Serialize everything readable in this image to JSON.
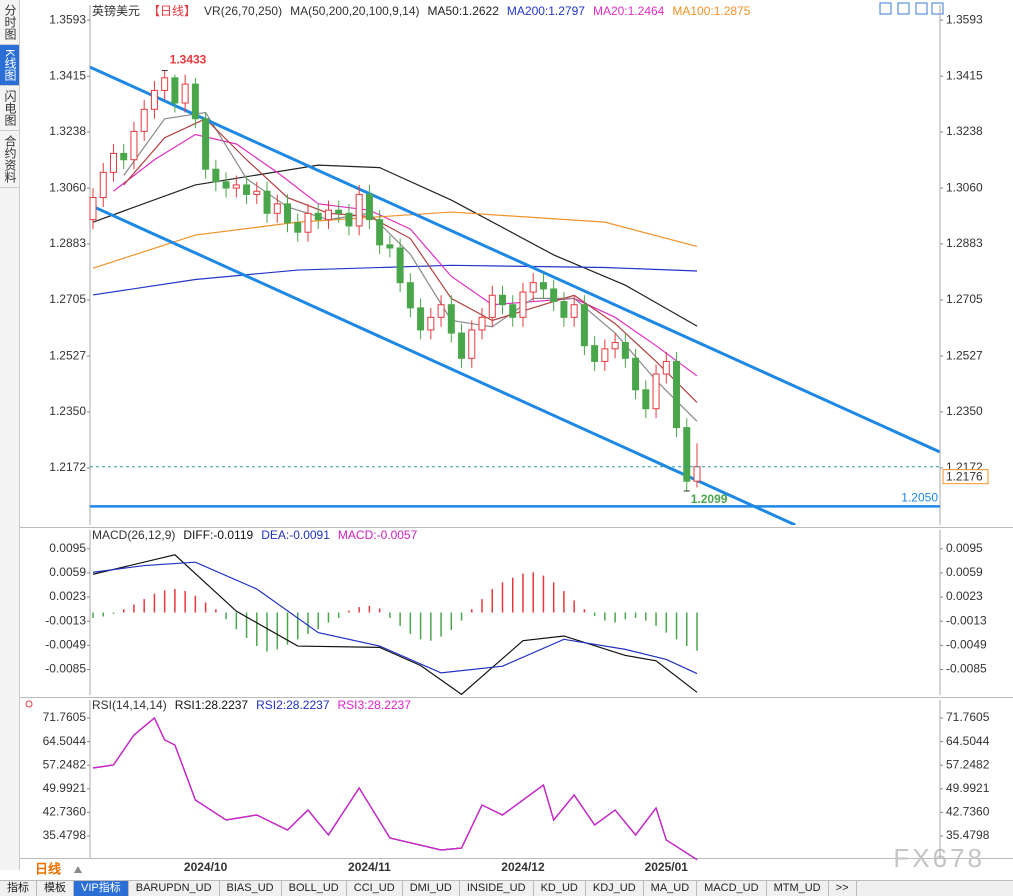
{
  "ui": {
    "side_tabs": [
      "分时图",
      "K线图",
      "闪电图",
      "合约资料"
    ],
    "active_side_tab": 1,
    "period": "日线",
    "bottom_tabs": [
      "指标",
      "模板",
      "VIP指标",
      "BARUPDN_UD",
      "BIAS_UD",
      "BOLL_UD",
      "CCI_UD",
      "DMI_UD",
      "INSIDE_UD",
      "KD_UD",
      "KDJ_UD",
      "MA_UD",
      "MACD_UD",
      "MTM_UD",
      ">>"
    ],
    "active_bottom_tab": 2,
    "watermark": "FX678"
  },
  "chart_data": [
    {
      "type": "candlestick",
      "title": "英镑美元",
      "subtitle": "【日线】",
      "indicators": [
        "VR(26,70,250)",
        "MA(50,200,20,100,9,14)"
      ],
      "categories": [
        null,
        null,
        null,
        null,
        null,
        null,
        null,
        null,
        null,
        null,
        null,
        "2024/10",
        null,
        null,
        null,
        null,
        null,
        null,
        null,
        null,
        null,
        null,
        null,
        null,
        null,
        null,
        null,
        "2024/11",
        null,
        null,
        null,
        null,
        null,
        null,
        null,
        null,
        null,
        null,
        null,
        null,
        null,
        null,
        "2024/12",
        null,
        null,
        null,
        null,
        null,
        null,
        null,
        null,
        null,
        null,
        null,
        null,
        null,
        "2025/01",
        null,
        null,
        null
      ],
      "open": [
        1.296,
        1.303,
        1.311,
        1.317,
        1.315,
        1.324,
        1.331,
        1.337,
        1.341,
        1.333,
        1.339,
        1.328,
        1.312,
        1.308,
        1.306,
        1.307,
        1.304,
        1.305,
        1.298,
        1.301,
        1.295,
        1.292,
        1.298,
        1.296,
        1.299,
        1.298,
        1.294,
        1.304,
        1.296,
        1.288,
        1.287,
        1.276,
        1.268,
        1.261,
        1.265,
        1.269,
        1.26,
        1.252,
        1.261,
        1.265,
        1.272,
        1.269,
        1.265,
        1.273,
        1.276,
        1.274,
        1.27,
        1.265,
        1.269,
        1.256,
        1.251,
        1.255,
        1.257,
        1.252,
        1.242,
        1.236,
        1.247,
        1.251,
        1.23,
        1.213
      ],
      "high": [
        1.306,
        1.314,
        1.32,
        1.32,
        1.327,
        1.334,
        1.34,
        1.3433,
        1.342,
        1.342,
        1.341,
        1.33,
        1.315,
        1.311,
        1.31,
        1.31,
        1.308,
        1.308,
        1.304,
        1.304,
        1.298,
        1.301,
        1.301,
        1.302,
        1.302,
        1.301,
        1.307,
        1.307,
        1.299,
        1.291,
        1.29,
        1.279,
        1.271,
        1.268,
        1.272,
        1.272,
        1.263,
        1.264,
        1.268,
        1.275,
        1.275,
        1.272,
        1.276,
        1.279,
        1.279,
        1.277,
        1.273,
        1.272,
        1.272,
        1.259,
        1.258,
        1.26,
        1.26,
        1.255,
        1.245,
        1.25,
        1.254,
        1.254,
        1.233,
        1.225
      ],
      "low": [
        1.293,
        1.3,
        1.308,
        1.312,
        1.312,
        1.321,
        1.328,
        1.334,
        1.33,
        1.33,
        1.325,
        1.309,
        1.305,
        1.303,
        1.303,
        1.301,
        1.301,
        1.295,
        1.295,
        1.292,
        1.289,
        1.289,
        1.293,
        1.293,
        1.295,
        1.291,
        1.291,
        1.293,
        1.285,
        1.284,
        1.273,
        1.265,
        1.258,
        1.258,
        1.262,
        1.257,
        1.249,
        1.249,
        1.258,
        1.262,
        1.266,
        1.262,
        1.262,
        1.27,
        1.271,
        1.267,
        1.262,
        1.262,
        1.253,
        1.248,
        1.248,
        1.252,
        1.249,
        1.239,
        1.233,
        1.233,
        1.244,
        1.227,
        1.2099,
        1.211
      ],
      "close": [
        1.303,
        1.311,
        1.317,
        1.315,
        1.324,
        1.331,
        1.337,
        1.341,
        1.333,
        1.339,
        1.328,
        1.312,
        1.308,
        1.306,
        1.307,
        1.304,
        1.305,
        1.298,
        1.301,
        1.295,
        1.292,
        1.298,
        1.296,
        1.299,
        1.298,
        1.294,
        1.304,
        1.296,
        1.288,
        1.287,
        1.276,
        1.268,
        1.261,
        1.265,
        1.269,
        1.26,
        1.252,
        1.261,
        1.265,
        1.272,
        1.269,
        1.265,
        1.273,
        1.276,
        1.274,
        1.27,
        1.265,
        1.269,
        1.256,
        1.251,
        1.255,
        1.257,
        1.252,
        1.242,
        1.236,
        1.247,
        1.251,
        1.23,
        1.213,
        1.2176
      ],
      "up_color": "#e8383d",
      "down_color": "#4aa64a",
      "ylim": [
        1.1991,
        1.3641
      ],
      "yticks": [
        1.3593,
        1.3415,
        1.3238,
        {
          "value": 1.306,
          "label": "1.3060"
        },
        1.2883,
        1.2705,
        1.2527,
        {
          "value": 1.235,
          "label": "1.2350"
        },
        1.2172
      ],
      "lines": [
        {
          "name": "MA50:1.2622",
          "color": "#222222",
          "x": [
            0,
            10,
            22,
            28,
            35,
            45,
            52,
            59
          ],
          "values": [
            1.2952,
            1.307,
            1.3133,
            1.3125,
            1.3022,
            1.2848,
            1.2752,
            1.2622
          ]
        },
        {
          "name": "MA200:1.2797",
          "color": "#2236c8",
          "x": [
            0,
            10,
            20,
            35,
            50,
            59
          ],
          "values": [
            1.2721,
            1.277,
            1.28,
            1.2815,
            1.2808,
            1.2797
          ]
        },
        {
          "name": "MA20:1.2464",
          "color": "#e02ec4",
          "x": [
            2,
            6,
            10,
            14,
            18,
            22,
            27,
            31,
            35,
            39,
            43,
            47,
            51,
            55,
            59
          ],
          "values": [
            1.305,
            1.315,
            1.323,
            1.32,
            1.311,
            1.301,
            1.299,
            1.293,
            1.278,
            1.269,
            1.27,
            1.271,
            1.265,
            1.256,
            1.2464
          ]
        },
        {
          "name": "MA100:1.2875",
          "color": "#f0932b",
          "x": [
            0,
            10,
            20,
            35,
            50,
            59
          ],
          "values": [
            1.2806,
            1.2911,
            1.2952,
            1.2984,
            1.2952,
            1.2875
          ]
        },
        {
          "color": "#8a8a8a",
          "x": [
            3,
            7,
            11,
            15,
            19,
            23,
            27,
            31,
            35,
            39,
            43,
            47,
            51,
            55,
            59
          ],
          "values": [
            1.31,
            1.328,
            1.33,
            1.309,
            1.3,
            1.296,
            1.298,
            1.285,
            1.264,
            1.262,
            1.271,
            1.271,
            1.26,
            1.245,
            1.232
          ]
        },
        {
          "color": "#b04040",
          "x": [
            3,
            7,
            11,
            15,
            19,
            23,
            27,
            31,
            35,
            39,
            43,
            47,
            51,
            55,
            59
          ],
          "values": [
            1.307,
            1.322,
            1.328,
            1.315,
            1.303,
            1.298,
            1.297,
            1.29,
            1.271,
            1.264,
            1.268,
            1.272,
            1.263,
            1.251,
            1.238
          ]
        }
      ],
      "trendlines": [
        {
          "color": "#1e88e5",
          "x": [
            -0.3,
            82.7
          ],
          "values": [
            1.3444,
            1.2223
          ]
        },
        {
          "color": "#1e88e5",
          "x": [
            -0.3,
            68.6
          ],
          "values": [
            1.3006,
            1.1991
          ]
        }
      ],
      "hline": {
        "value": 1.205,
        "label": "1.2050",
        "color": "#1e88e5"
      },
      "last_price_color": "#2aa0a0"
    },
    {
      "type": "macd",
      "title": "MACD(26,12,9)",
      "series": [
        {
          "name": "DIFF:-0.0119",
          "color": "#111111",
          "x": [
            0,
            8,
            14,
            20,
            28,
            32,
            36,
            42,
            46,
            52,
            55,
            59
          ],
          "values": [
            0.0057,
            0.0086,
            0.0002,
            -0.005,
            -0.0052,
            -0.0079,
            -0.0122,
            -0.0042,
            -0.0035,
            -0.0064,
            -0.0072,
            -0.0119
          ]
        },
        {
          "name": "DEA:-0.0091",
          "color": "#2030c0",
          "x": [
            0,
            5,
            10,
            16,
            22,
            28,
            34,
            40,
            46,
            52,
            56,
            59
          ],
          "values": [
            0.006,
            0.007,
            0.0075,
            0.0035,
            -0.003,
            -0.005,
            -0.009,
            -0.008,
            -0.004,
            -0.0055,
            -0.007,
            -0.0091
          ]
        }
      ],
      "histogram": {
        "name": "MACD:-0.0057",
        "color": "#d020c0",
        "up_color": "#e8383d",
        "down_color": "#4aa64a",
        "values": [
          -0.0008,
          -0.0006,
          -0.0002,
          0.0005,
          0.0012,
          0.002,
          0.0028,
          0.0033,
          0.0035,
          0.0032,
          0.0025,
          0.0015,
          0.0005,
          -0.001,
          -0.0025,
          -0.0038,
          -0.005,
          -0.0058,
          -0.0055,
          -0.0048,
          -0.004,
          -0.0032,
          -0.0025,
          -0.0015,
          -0.0008,
          0.0003,
          0.0008,
          0.001,
          0.0006,
          -0.0008,
          -0.002,
          -0.0032,
          -0.004,
          -0.0042,
          -0.0036,
          -0.0026,
          -0.0012,
          0.0005,
          0.002,
          0.0035,
          0.0045,
          0.0052,
          0.0058,
          0.006,
          0.0055,
          0.0045,
          0.0032,
          0.0018,
          0.0005,
          -0.0005,
          -0.0012,
          -0.0015,
          -0.001,
          -0.0008,
          -0.0012,
          -0.002,
          -0.003,
          -0.004,
          -0.005,
          -0.0057
        ]
      },
      "ylim": [
        -0.0123,
        0.0123
      ],
      "yticks": [
        0.0095,
        0.0059,
        0.0023,
        -0.0013,
        -0.0049,
        -0.0085
      ]
    },
    {
      "type": "line",
      "title": "RSI(14,14,14)",
      "series": [
        {
          "name": "RSI1:28.2237",
          "color": "#111111",
          "x": [
            0,
            2,
            4,
            6,
            7,
            8,
            10,
            13,
            16,
            19,
            21,
            23,
            26,
            29,
            34,
            36,
            38,
            40,
            44,
            45,
            47,
            49,
            51,
            53,
            55,
            56,
            59
          ],
          "values": [
            56.39,
            57.31,
            66.53,
            71.76,
            65.0,
            63.46,
            46.55,
            40.4,
            41.94,
            37.32,
            43.47,
            35.79,
            50.24,
            34.87,
            31.17,
            31.79,
            45.01,
            41.94,
            51.16,
            40.4,
            48.09,
            38.86,
            43.47,
            35.79,
            44.09,
            34.25,
            28.2237
          ]
        },
        {
          "name": "RSI2:28.2237",
          "color": "#2030c0",
          "x": [
            0,
            2,
            4,
            6,
            7,
            8,
            10,
            13,
            16,
            19,
            21,
            23,
            26,
            29,
            34,
            36,
            38,
            40,
            44,
            45,
            47,
            49,
            51,
            53,
            55,
            56,
            59
          ],
          "values": [
            56.39,
            57.31,
            66.53,
            71.76,
            65.0,
            63.46,
            46.55,
            40.4,
            41.94,
            37.32,
            43.47,
            35.79,
            50.24,
            34.87,
            31.17,
            31.79,
            45.01,
            41.94,
            51.16,
            40.4,
            48.09,
            38.86,
            43.47,
            35.79,
            44.09,
            34.25,
            28.2237
          ]
        },
        {
          "name": "RSI3:28.2237",
          "color": "#e020d0",
          "x": [
            0,
            2,
            4,
            6,
            7,
            8,
            10,
            13,
            16,
            19,
            21,
            23,
            26,
            29,
            34,
            36,
            38,
            40,
            44,
            45,
            47,
            49,
            51,
            53,
            55,
            56,
            59
          ],
          "values": [
            56.39,
            57.31,
            66.53,
            71.76,
            65.0,
            63.46,
            46.55,
            40.4,
            41.94,
            37.32,
            43.47,
            35.79,
            50.24,
            34.87,
            31.17,
            31.79,
            45.01,
            41.94,
            51.16,
            40.4,
            48.09,
            38.86,
            43.47,
            35.79,
            44.09,
            34.25,
            28.2237
          ]
        }
      ],
      "ylim": [
        28.716,
        77.295
      ],
      "yticks": [
        71.7605,
        64.5044,
        57.2482,
        49.9921,
        {
          "value": 42.736,
          "label": "42.7360"
        },
        35.4798
      ]
    }
  ]
}
